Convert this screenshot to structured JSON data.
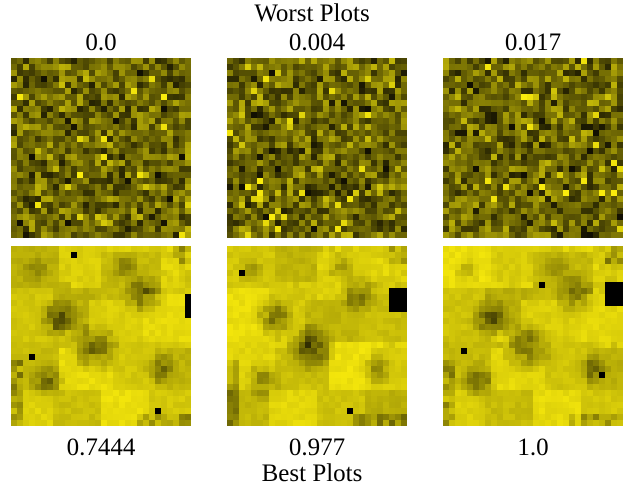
{
  "figure": {
    "top_title": "Worst Plots",
    "bottom_title": "Best Plots",
    "worst_labels": [
      "0.0",
      "0.004",
      "0.017"
    ],
    "best_labels": [
      "0.7444",
      "0.977",
      "1.0"
    ],
    "colors": {
      "background": "#ffffff",
      "text": "#000000",
      "bright_yellow": "#f4ea00",
      "mid_olive": "#8e8416",
      "dark_olive": "#2f2a03",
      "black": "#000000"
    }
  }
}
